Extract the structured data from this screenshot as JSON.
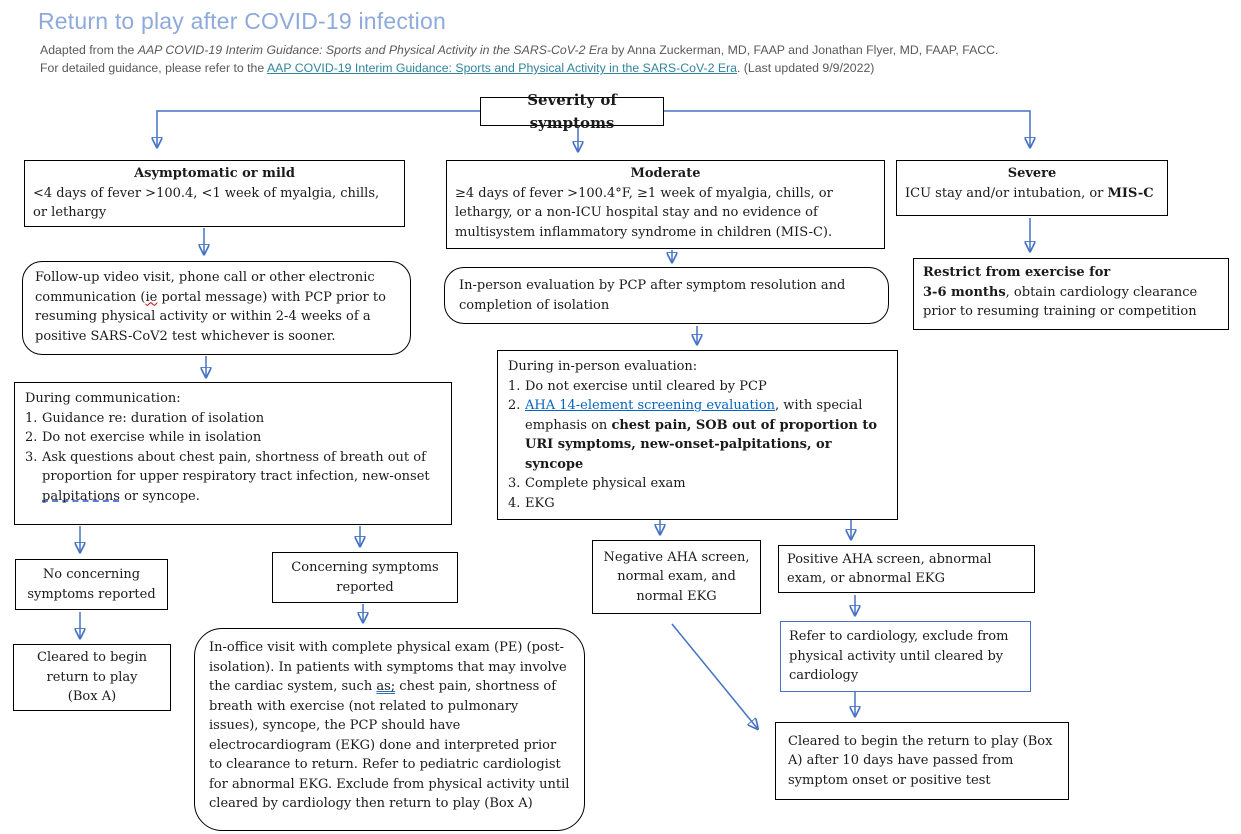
{
  "header": {
    "title": "Return to play after COVID-19 infection",
    "line1": [
      {
        "t": "Adapted from the "
      },
      {
        "t": "AAP COVID-19 Interim Guidance: Sports and Physical Activity in the SARS-CoV-2 Era",
        "c": "i"
      },
      {
        "t": " by Anna Zuckerman, MD, FAAP and Jonathan Flyer, MD, FAAP, FACC."
      }
    ],
    "line2": [
      {
        "t": "For detailed guidance, please refer to the "
      },
      {
        "t": "AAP COVID-19 Interim Guidance: Sports and Physical Activity in the SARS-CoV-2 Era",
        "c": "link"
      },
      {
        "t": ".  (Last updated 9/9/2022)"
      }
    ]
  },
  "colors": {
    "accent_blue": "#4472C4",
    "title_blue": "#8EAADC",
    "header_link_teal": "#31849B",
    "body_link_blue": "#0563C1",
    "subtitle_gray": "#595959"
  },
  "boxes": {
    "severity": {
      "label": "Severity of symptoms"
    },
    "asymptomatic": {
      "title": "Asymptomatic or mild",
      "body": [
        {
          "t": "<4 days of fever >100.4, <1 week of myalgia, chills, or lethargy"
        }
      ]
    },
    "moderate": {
      "title": "Moderate",
      "body": [
        {
          "t": "≥4 days of fever >100.4°F, ≥1 week of myalgia, chills, or lethargy, or a non-ICU hospital stay and no evidence of multisystem inflammatory syndrome in children (MIS-C)."
        }
      ]
    },
    "severe": {
      "title": "Severe",
      "body": [
        {
          "t": "ICU stay and/or intubation, or "
        },
        {
          "t": "MIS-C",
          "c": "b"
        }
      ]
    },
    "followup": {
      "body": [
        {
          "t": " Follow-up video visit, phone call or other electronic communication ("
        },
        {
          "t": "ie",
          "c": "redwavy"
        },
        {
          "t": " portal message) with PCP prior to resuming physical activity or within 2-4 weeks of a positive SARS-CoV2 test whichever is sooner."
        }
      ]
    },
    "during_comm": {
      "heading": "During communication:",
      "items": [
        {
          "num": "1.",
          "segs": [
            {
              "t": "Guidance re: duration of isolation"
            }
          ]
        },
        {
          "num": "2.",
          "segs": [
            {
              "t": "Do not exercise while in isolation"
            }
          ]
        },
        {
          "num": "3.",
          "segs": [
            {
              "t": "Ask questions about chest pain, shortness of breath out of proportion for upper respiratory tract infection, new-onset "
            },
            {
              "t": "palpitations",
              "c": "bluedot"
            },
            {
              "t": " or syncope."
            }
          ]
        }
      ]
    },
    "inperson_eval": {
      "body": [
        {
          "t": "In-person evaluation by PCP after symptom resolution and completion of isolation"
        }
      ]
    },
    "restrict": {
      "body": [
        {
          "t": "Restrict from exercise for",
          "c": "b"
        },
        {
          "br": true
        },
        {
          "t": "3-6 months",
          "c": "b"
        },
        {
          "t": ", obtain cardiology clearance prior to resuming training or competition"
        }
      ]
    },
    "during_eval": {
      "heading": "During in-person evaluation:",
      "items": [
        {
          "num": "1.",
          "segs": [
            {
              "t": "Do not exercise until cleared by PCP"
            }
          ]
        },
        {
          "num": "2.",
          "segs": [
            {
              "t": "AHA 14-element screening evaluation",
              "c": "bluelink"
            },
            {
              "t": ", with special emphasis on "
            },
            {
              "t": "chest pain, SOB out of proportion to URI symptoms, new-onset-palpitations, or syncope",
              "c": "b"
            }
          ]
        },
        {
          "num": "3.",
          "segs": [
            {
              "t": "Complete physical exam"
            }
          ]
        },
        {
          "num": "4.",
          "segs": [
            {
              "t": "EKG"
            }
          ]
        }
      ]
    },
    "no_concerning": {
      "body": [
        {
          "t": "No concerning"
        },
        {
          "br": true
        },
        {
          "t": "symptoms reported"
        }
      ]
    },
    "concerning": {
      "body": [
        {
          "t": "Concerning symptoms"
        },
        {
          "br": true
        },
        {
          "t": "reported"
        }
      ]
    },
    "cleared_a": {
      "body": [
        {
          "t": "Cleared to begin"
        },
        {
          "br": true
        },
        {
          "t": "return to play"
        },
        {
          "br": true
        },
        {
          "t": "(Box A)"
        }
      ]
    },
    "in_office": {
      "body": [
        {
          "t": "In-office visit with complete physical exam (PE) (post-isolation). In patients with symptoms that may involve the cardiac system, such "
        },
        {
          "t": "as;",
          "c": "bludbl"
        },
        {
          "t": " chest pain, shortness of breath with exercise (not related to pulmonary issues), syncope, the PCP should have electrocardiogram (EKG) done and interpreted prior to clearance to return. Refer to pediatric cardiologist for abnormal EKG. Exclude from physical activity until cleared by cardiology then return to play (Box A)"
        }
      ]
    },
    "negative_aha": {
      "body": [
        {
          "t": "Negative AHA screen,"
        },
        {
          "br": true
        },
        {
          "t": "normal exam, and"
        },
        {
          "br": true
        },
        {
          "t": "normal EKG"
        }
      ]
    },
    "positive_aha": {
      "body": [
        {
          "t": "Positive AHA screen, abnormal exam, or abnormal EKG"
        }
      ]
    },
    "refer_cardio": {
      "body": [
        {
          "t": "Refer to cardiology, exclude from physical activity until cleared by cardiology"
        }
      ]
    },
    "cleared_10days": {
      "body": [
        {
          "t": "Cleared to begin the return to play (Box A) after 10 days have passed from symptom onset or positive test"
        }
      ]
    }
  }
}
